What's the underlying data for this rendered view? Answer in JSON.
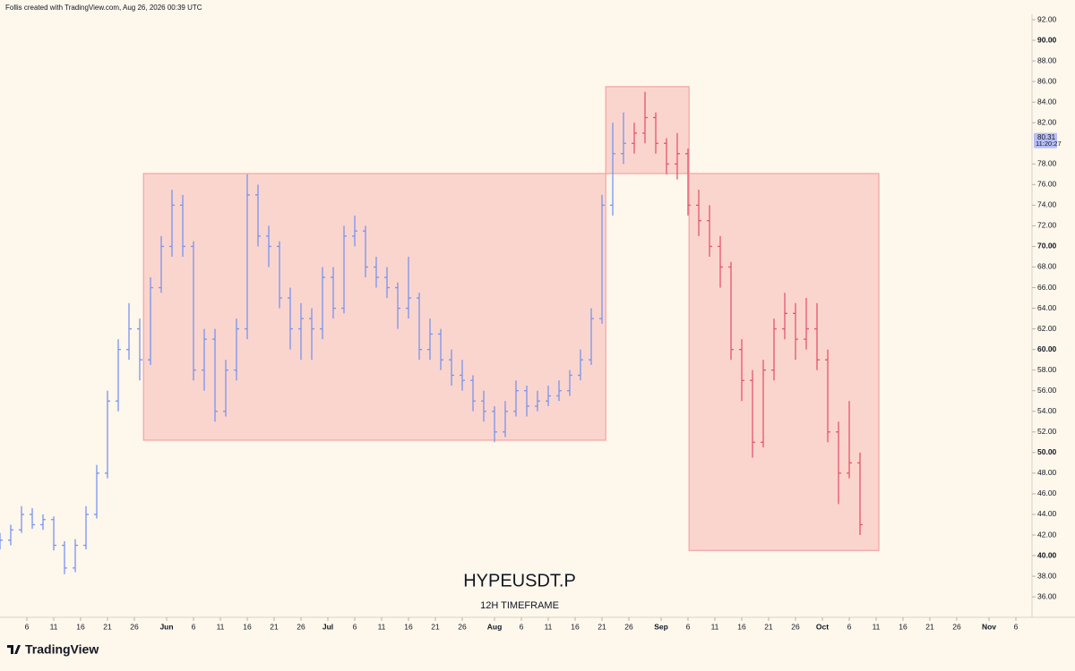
{
  "header": {
    "credit": "Follis created with TradingView.com, Aug 26, 2026 00:39 UTC"
  },
  "footer": {
    "logo": "TradingView"
  },
  "chart_data": {
    "type": "ohlc",
    "title": "HYPEUSDT.P",
    "subtitle": "12H TIMEFRAME",
    "xlim": [
      1,
      193
    ],
    "ylim": [
      35,
      93
    ],
    "yticks": [
      {
        "value": 36,
        "label": "36.00"
      },
      {
        "value": 38,
        "label": "38.00"
      },
      {
        "value": 40,
        "label": "40.00"
      },
      {
        "value": 42,
        "label": "42.00"
      },
      {
        "value": 44,
        "label": "44.00"
      },
      {
        "value": 46,
        "label": "46.00"
      },
      {
        "value": 48,
        "label": "48.00"
      },
      {
        "value": 50,
        "label": "50.00"
      },
      {
        "value": 52,
        "label": "52.00"
      },
      {
        "value": 54,
        "label": "54.00"
      },
      {
        "value": 56,
        "label": "56.00"
      },
      {
        "value": 58,
        "label": "58.00"
      },
      {
        "value": 60,
        "label": "60.00"
      },
      {
        "value": 62,
        "label": "62.00"
      },
      {
        "value": 64,
        "label": "64.00"
      },
      {
        "value": 66,
        "label": "66.00"
      },
      {
        "value": 68,
        "label": "68.00"
      },
      {
        "value": 70,
        "label": "70.00"
      },
      {
        "value": 72,
        "label": "72.00"
      },
      {
        "value": 74,
        "label": "74.00"
      },
      {
        "value": 76,
        "label": "76.00"
      },
      {
        "value": 78,
        "label": "78.00"
      },
      {
        "value": 82,
        "label": "82.00"
      },
      {
        "value": 84,
        "label": "84.00"
      },
      {
        "value": 86,
        "label": "86.00"
      },
      {
        "value": 88,
        "label": "88.00"
      },
      {
        "value": 90,
        "label": "90.00"
      },
      {
        "value": 92,
        "label": "92.00"
      }
    ],
    "xticks": [
      {
        "value": 6,
        "label": "6"
      },
      {
        "value": 11,
        "label": "11"
      },
      {
        "value": 16,
        "label": "16"
      },
      {
        "value": 21,
        "label": "21"
      },
      {
        "value": 26,
        "label": "26"
      },
      {
        "value": 32,
        "label": "Jun"
      },
      {
        "value": 37,
        "label": "6"
      },
      {
        "value": 42,
        "label": "11"
      },
      {
        "value": 47,
        "label": "16"
      },
      {
        "value": 52,
        "label": "21"
      },
      {
        "value": 57,
        "label": "26"
      },
      {
        "value": 62,
        "label": "Jul"
      },
      {
        "value": 67,
        "label": "6"
      },
      {
        "value": 72,
        "label": "11"
      },
      {
        "value": 77,
        "label": "16"
      },
      {
        "value": 82,
        "label": "21"
      },
      {
        "value": 87,
        "label": "26"
      },
      {
        "value": 93,
        "label": "Aug"
      },
      {
        "value": 98,
        "label": "6"
      },
      {
        "value": 103,
        "label": "11"
      },
      {
        "value": 108,
        "label": "16"
      },
      {
        "value": 113,
        "label": "21"
      },
      {
        "value": 118,
        "label": "26"
      },
      {
        "value": 124,
        "label": "Sep"
      },
      {
        "value": 129,
        "label": "6"
      },
      {
        "value": 134,
        "label": "11"
      },
      {
        "value": 139,
        "label": "16"
      },
      {
        "value": 144,
        "label": "21"
      },
      {
        "value": 149,
        "label": "26"
      },
      {
        "value": 154,
        "label": "Oct"
      },
      {
        "value": 159,
        "label": "6"
      },
      {
        "value": 164,
        "label": "11"
      },
      {
        "value": 169,
        "label": "16"
      },
      {
        "value": 174,
        "label": "21"
      },
      {
        "value": 179,
        "label": "26"
      },
      {
        "value": 185,
        "label": "Nov"
      },
      {
        "value": 190,
        "label": "6"
      }
    ],
    "last_price": {
      "value": 80.31,
      "countdown": "11:20:27",
      "color": "#b7bff5"
    },
    "boxes": [
      {
        "x": [
          27.7,
          113.7
        ],
        "y": [
          51.2,
          77.07
        ]
      },
      {
        "x": [
          113.7,
          129.2
        ],
        "y": [
          77.07,
          85.5
        ]
      },
      {
        "x": [
          129.2,
          164.5
        ],
        "y": [
          40.5,
          77.07
        ]
      }
    ],
    "box_color": "#f4a3a3",
    "series": [
      {
        "color": "#7a94ee",
        "x": [
          1,
          3,
          5,
          7,
          9,
          11,
          13,
          15,
          17,
          19,
          21,
          23,
          25,
          27,
          29,
          31,
          33,
          35,
          37,
          39,
          41,
          43,
          45,
          47,
          49,
          51,
          53,
          55,
          57,
          59,
          61,
          63,
          65,
          67,
          69,
          71,
          73,
          75,
          77,
          79,
          81,
          83,
          85,
          87,
          89,
          91,
          93,
          95,
          97,
          99,
          101,
          103,
          105,
          107,
          109,
          111,
          113,
          115,
          117
        ],
        "ohlc": [
          [
            41,
            42.2,
            40.6,
            41.5
          ],
          [
            41.5,
            43,
            41,
            42.5
          ],
          [
            42.5,
            44.8,
            42.2,
            44
          ],
          [
            44,
            44.6,
            42.6,
            43
          ],
          [
            43,
            44,
            42.5,
            43.5
          ],
          [
            43.5,
            43.8,
            40.5,
            41
          ],
          [
            41,
            41.4,
            38.2,
            38.8
          ],
          [
            38.8,
            41.6,
            38.4,
            41
          ],
          [
            41,
            44.8,
            40.6,
            44
          ],
          [
            44,
            48.8,
            43.6,
            48
          ],
          [
            48,
            56,
            47.5,
            55
          ],
          [
            55,
            61,
            54,
            60
          ],
          [
            60,
            64.5,
            59,
            62
          ],
          [
            62,
            63,
            57,
            59
          ],
          [
            59,
            67,
            58.5,
            66
          ],
          [
            66,
            71,
            65.5,
            70
          ],
          [
            70,
            75.5,
            69,
            74
          ],
          [
            74,
            75,
            69,
            70
          ],
          [
            70,
            70.5,
            57,
            58
          ],
          [
            58,
            62,
            56,
            61
          ],
          [
            61,
            62,
            53,
            54
          ],
          [
            54,
            59,
            53.5,
            58
          ],
          [
            58,
            63,
            57,
            62
          ],
          [
            62,
            77,
            61,
            75
          ],
          [
            75,
            76,
            70,
            71
          ],
          [
            71,
            72,
            68,
            70
          ],
          [
            70,
            70.5,
            64,
            65
          ],
          [
            65,
            66,
            60,
            62
          ],
          [
            62,
            64.5,
            59,
            63
          ],
          [
            63,
            64,
            59,
            62
          ],
          [
            62,
            68,
            61,
            67
          ],
          [
            67,
            68,
            63,
            64
          ],
          [
            64,
            72,
            63.5,
            71
          ],
          [
            71,
            73,
            70,
            71.5
          ],
          [
            71.5,
            72,
            67,
            68
          ],
          [
            68,
            69,
            66,
            67
          ],
          [
            67,
            68,
            65,
            66
          ],
          [
            66,
            66.5,
            62,
            64
          ],
          [
            64,
            69,
            63,
            65
          ],
          [
            65,
            65.5,
            59,
            60
          ],
          [
            60,
            63,
            59,
            61.5
          ],
          [
            61.5,
            62,
            58,
            59
          ],
          [
            59,
            60,
            56.5,
            57.5
          ],
          [
            57.5,
            59,
            56,
            57
          ],
          [
            57,
            57.5,
            54,
            55
          ],
          [
            55,
            56,
            53,
            54
          ],
          [
            54,
            54.5,
            51,
            52
          ],
          [
            52,
            55,
            51.5,
            54
          ],
          [
            54,
            57,
            53.5,
            56
          ],
          [
            56,
            56.5,
            53.5,
            54.5
          ],
          [
            54.5,
            56,
            54,
            55
          ],
          [
            55,
            56.5,
            54.5,
            55.5
          ],
          [
            55.5,
            57,
            55,
            56
          ],
          [
            56,
            58,
            55.5,
            57.5
          ],
          [
            57.5,
            60,
            57,
            59
          ],
          [
            59,
            64,
            58.5,
            63
          ],
          [
            63,
            75,
            62.5,
            74
          ],
          [
            74,
            82,
            73,
            79
          ],
          [
            79,
            83,
            78,
            80
          ]
        ]
      },
      {
        "color": "#e5566d",
        "x": [
          119,
          121,
          123,
          125,
          127,
          129,
          131,
          133,
          135,
          137,
          139,
          141,
          143,
          145,
          147,
          149,
          151,
          153,
          155,
          157,
          159,
          161
        ],
        "ohlc": [
          [
            80,
            82,
            79,
            81
          ],
          [
            81,
            85,
            80,
            82.5
          ],
          [
            82.5,
            83,
            79,
            80
          ],
          [
            80,
            80.5,
            77,
            78
          ],
          [
            78,
            81,
            76.5,
            79
          ],
          [
            79,
            79.5,
            73,
            74
          ],
          [
            74,
            75.5,
            71,
            72.5
          ],
          [
            72.5,
            74,
            69,
            70
          ],
          [
            70,
            71,
            66,
            68
          ],
          [
            68,
            68.5,
            59,
            60
          ],
          [
            60,
            61,
            55,
            57
          ],
          [
            57,
            58,
            49.5,
            51
          ],
          [
            51,
            59,
            50.5,
            58
          ],
          [
            58,
            63,
            57,
            62
          ],
          [
            62,
            65.5,
            61,
            63.5
          ],
          [
            63.5,
            64.5,
            59,
            61
          ],
          [
            61,
            65,
            60,
            62
          ],
          [
            62,
            64.5,
            58,
            59
          ],
          [
            59,
            60,
            51,
            52
          ],
          [
            52,
            53,
            45,
            48
          ],
          [
            48,
            55,
            47.5,
            49
          ],
          [
            49,
            50,
            42,
            43
          ]
        ]
      }
    ]
  }
}
